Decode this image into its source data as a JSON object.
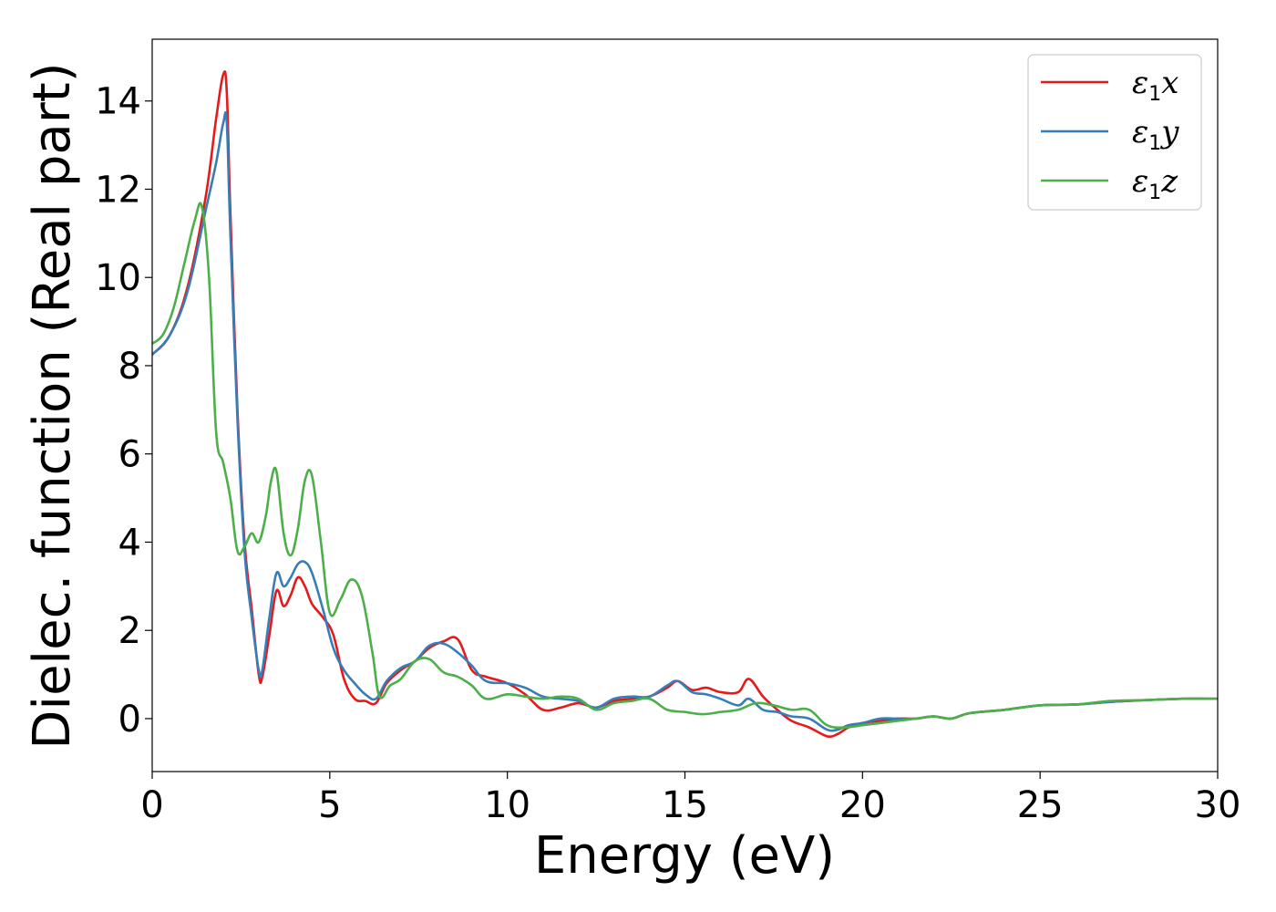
{
  "chart_data": {
    "type": "line",
    "xlabel": "Energy (eV)",
    "ylabel": "Dielec. function (Real part)",
    "xlim": [
      0,
      30
    ],
    "ylim": [
      -1.2,
      15.4
    ],
    "xticks": [
      "0",
      "5",
      "10",
      "15",
      "20",
      "25",
      "30"
    ],
    "yticks": [
      "0",
      "2",
      "4",
      "6",
      "8",
      "10",
      "12",
      "14"
    ],
    "grid": false,
    "legend_position": "top-right",
    "series": [
      {
        "name_symbol": "ε",
        "name_sub": "1",
        "name_axis": "x",
        "color": "#e41a1c",
        "x": [
          0,
          0.5,
          1.0,
          1.5,
          1.8,
          2.0,
          2.1,
          2.2,
          2.4,
          2.6,
          2.8,
          3.0,
          3.1,
          3.3,
          3.5,
          3.7,
          3.9,
          4.1,
          4.3,
          4.5,
          4.8,
          5.1,
          5.4,
          5.7,
          6.0,
          6.3,
          6.6,
          7.0,
          7.4,
          7.8,
          8.2,
          8.6,
          9.0,
          9.4,
          10.0,
          10.5,
          11.0,
          11.5,
          12.0,
          12.5,
          13.0,
          13.5,
          14.0,
          14.5,
          14.8,
          15.2,
          15.6,
          16.0,
          16.5,
          16.8,
          17.2,
          17.6,
          18.0,
          18.5,
          19.0,
          19.3,
          19.6,
          20.0,
          20.5,
          21.0,
          21.5,
          22.0,
          22.5,
          23.0,
          24.0,
          25.0,
          26.0,
          27.0,
          28.0,
          29.0,
          30.0
        ],
        "y": [
          8.25,
          8.7,
          9.8,
          11.8,
          13.6,
          14.6,
          14.2,
          11.5,
          7.0,
          4.0,
          2.5,
          1.0,
          0.95,
          1.9,
          2.9,
          2.55,
          2.8,
          3.2,
          3.0,
          2.6,
          2.3,
          1.9,
          0.9,
          0.45,
          0.4,
          0.35,
          0.8,
          1.1,
          1.3,
          1.6,
          1.75,
          1.8,
          1.1,
          0.95,
          0.8,
          0.55,
          0.2,
          0.25,
          0.35,
          0.25,
          0.4,
          0.45,
          0.5,
          0.7,
          0.85,
          0.65,
          0.7,
          0.6,
          0.6,
          0.9,
          0.5,
          0.2,
          -0.05,
          -0.2,
          -0.4,
          -0.35,
          -0.2,
          -0.1,
          -0.05,
          0.0,
          0.0,
          0.05,
          0.0,
          0.12,
          0.2,
          0.3,
          0.32,
          0.38,
          0.42,
          0.45,
          0.45
        ]
      },
      {
        "name_symbol": "ε",
        "name_sub": "1",
        "name_axis": "y",
        "color": "#377eb8",
        "x": [
          0,
          0.5,
          1.0,
          1.5,
          1.8,
          2.0,
          2.1,
          2.2,
          2.4,
          2.6,
          2.8,
          3.0,
          3.1,
          3.3,
          3.5,
          3.7,
          3.9,
          4.1,
          4.3,
          4.5,
          4.8,
          5.1,
          5.4,
          5.7,
          6.0,
          6.3,
          6.6,
          7.0,
          7.4,
          7.8,
          8.2,
          8.6,
          9.0,
          9.4,
          10.0,
          10.5,
          11.0,
          11.5,
          12.0,
          12.5,
          13.0,
          13.5,
          14.0,
          14.5,
          14.8,
          15.2,
          15.6,
          16.0,
          16.5,
          16.8,
          17.2,
          17.6,
          18.0,
          18.5,
          19.0,
          19.3,
          19.6,
          20.0,
          20.5,
          21.0,
          21.5,
          22.0,
          22.5,
          23.0,
          24.0,
          25.0,
          26.0,
          27.0,
          28.0,
          29.0,
          30.0
        ],
        "y": [
          8.25,
          8.7,
          9.7,
          11.5,
          12.6,
          13.5,
          13.5,
          11.0,
          6.8,
          3.8,
          2.3,
          1.1,
          1.1,
          2.3,
          3.3,
          3.0,
          3.2,
          3.5,
          3.55,
          3.3,
          2.5,
          1.6,
          1.1,
          0.8,
          0.55,
          0.45,
          0.85,
          1.15,
          1.3,
          1.65,
          1.7,
          1.5,
          1.2,
          0.85,
          0.8,
          0.7,
          0.5,
          0.45,
          0.4,
          0.25,
          0.45,
          0.5,
          0.5,
          0.75,
          0.85,
          0.6,
          0.55,
          0.45,
          0.3,
          0.45,
          0.2,
          0.15,
          0.05,
          0.0,
          -0.25,
          -0.25,
          -0.15,
          -0.1,
          0.0,
          0.0,
          0.0,
          0.05,
          0.0,
          0.12,
          0.2,
          0.3,
          0.32,
          0.38,
          0.42,
          0.45,
          0.45
        ]
      },
      {
        "name_symbol": "ε",
        "name_sub": "1",
        "name_axis": "z",
        "color": "#4daf4a",
        "x": [
          0,
          0.3,
          0.6,
          0.9,
          1.2,
          1.4,
          1.6,
          1.8,
          2.0,
          2.2,
          2.4,
          2.6,
          2.8,
          3.0,
          3.2,
          3.35,
          3.5,
          3.7,
          3.9,
          4.1,
          4.3,
          4.5,
          4.75,
          5.0,
          5.3,
          5.6,
          5.9,
          6.2,
          6.4,
          6.7,
          7.0,
          7.4,
          7.8,
          8.2,
          8.6,
          9.0,
          9.4,
          10.0,
          10.5,
          11.0,
          11.5,
          12.0,
          12.5,
          13.0,
          13.5,
          14.0,
          14.5,
          15.0,
          15.5,
          16.0,
          16.5,
          17.0,
          17.5,
          18.0,
          18.5,
          19.0,
          19.5,
          20.0,
          20.5,
          21.0,
          21.5,
          22.0,
          22.5,
          23.0,
          24.0,
          25.0,
          26.0,
          27.0,
          28.0,
          29.0,
          30.0
        ],
        "y": [
          8.5,
          8.7,
          9.3,
          10.3,
          11.3,
          11.6,
          10.0,
          6.5,
          5.8,
          5.0,
          3.8,
          3.9,
          4.2,
          4.0,
          4.6,
          5.4,
          5.6,
          4.2,
          3.7,
          4.3,
          5.4,
          5.5,
          4.0,
          2.4,
          2.7,
          3.15,
          2.8,
          1.5,
          0.5,
          0.75,
          0.9,
          1.3,
          1.35,
          1.05,
          0.95,
          0.75,
          0.45,
          0.55,
          0.5,
          0.45,
          0.5,
          0.45,
          0.2,
          0.35,
          0.4,
          0.45,
          0.2,
          0.15,
          0.1,
          0.15,
          0.2,
          0.35,
          0.3,
          0.2,
          0.2,
          -0.15,
          -0.2,
          -0.15,
          -0.1,
          -0.05,
          0.0,
          0.05,
          0.0,
          0.12,
          0.2,
          0.3,
          0.32,
          0.4,
          0.42,
          0.45,
          0.45
        ]
      }
    ]
  }
}
